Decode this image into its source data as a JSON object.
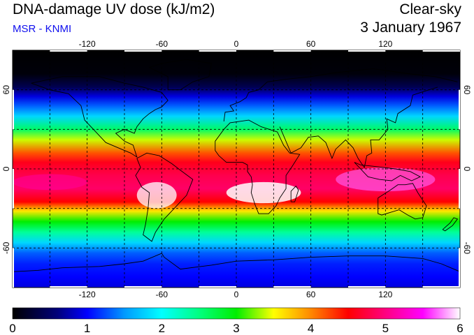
{
  "header": {
    "title": "DNA-damage UV dose (kJ/m2)",
    "source": "MSR - KNMI",
    "condition": "Clear-sky",
    "date": "3 January 1967"
  },
  "map": {
    "lon_ticks": [
      "-120",
      "-60",
      "0",
      "60",
      "120"
    ],
    "lat_ticks_left": [
      "60",
      "0",
      "-60"
    ],
    "lat_ticks_right": [
      "60",
      "0",
      "-60"
    ],
    "grid_lons": [
      -150,
      -120,
      -90,
      -60,
      -30,
      0,
      30,
      60,
      90,
      120,
      150
    ],
    "grid_lats": [
      60,
      30,
      0,
      -30,
      -60
    ],
    "extent": {
      "lon": [
        -180,
        180
      ],
      "lat": [
        -90,
        90
      ]
    }
  },
  "colorbar": {
    "min": 0,
    "max": 6,
    "labels": [
      "0",
      "1",
      "2",
      "3",
      "4",
      "5",
      "6"
    ],
    "stops": [
      {
        "v": 0.0,
        "c": "#000000"
      },
      {
        "v": 0.6,
        "c": "#00007a"
      },
      {
        "v": 1.0,
        "c": "#0000ff"
      },
      {
        "v": 1.5,
        "c": "#0099ff"
      },
      {
        "v": 2.0,
        "c": "#00ffff"
      },
      {
        "v": 2.5,
        "c": "#00ff80"
      },
      {
        "v": 3.0,
        "c": "#00ee00"
      },
      {
        "v": 3.5,
        "c": "#ffff00"
      },
      {
        "v": 4.0,
        "c": "#ff8800"
      },
      {
        "v": 4.5,
        "c": "#ff0000"
      },
      {
        "v": 5.0,
        "c": "#ff0080"
      },
      {
        "v": 5.5,
        "c": "#ff00ff"
      },
      {
        "v": 6.0,
        "c": "#ffffff"
      }
    ]
  },
  "colors": {
    "night": "#000000",
    "frame": "#000000",
    "coast": "#000000"
  }
}
